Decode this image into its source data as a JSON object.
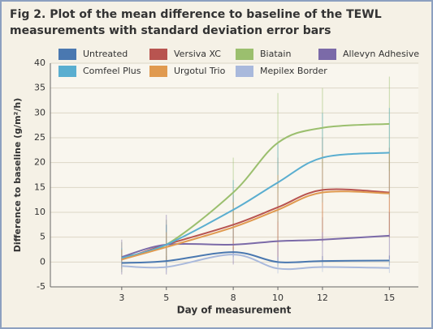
{
  "chart_data": {
    "type": "line",
    "title": "Fig 2. Plot of the mean difference to baseline of the TEWL",
    "subtitle": "measurements with standard deviation error bars",
    "xlabel": "Day of measurement",
    "ylabel": "Difference to baseline (g/m²/h)",
    "x": [
      3,
      5,
      8,
      10,
      12,
      15
    ],
    "series": [
      {
        "name": "Untreated",
        "color": "#4a78b0",
        "values": [
          -0.2,
          0.2,
          2,
          0,
          0.2,
          0.3
        ],
        "errors": [
          1,
          1,
          1,
          1,
          1,
          1
        ]
      },
      {
        "name": "Versiva XC",
        "color": "#b85450",
        "values": [
          0.5,
          3.5,
          7.5,
          11,
          14.5,
          14
        ],
        "errors": [
          2,
          4,
          6,
          10,
          10.5,
          9
        ]
      },
      {
        "name": "Biatain",
        "color": "#9bbf6e",
        "values": [
          1,
          3.5,
          14,
          24,
          27,
          27.8
        ],
        "errors": [
          3,
          5,
          7,
          10,
          8,
          9.5
        ]
      },
      {
        "name": "Allevyn Adhesive",
        "color": "#7b6aa8",
        "values": [
          1,
          3.5,
          3.5,
          4.2,
          4.5,
          5.3
        ],
        "errors": [
          3.5,
          6,
          4,
          4,
          4.5,
          4.7
        ]
      },
      {
        "name": "Comfeel Plus",
        "color": "#5aaed0",
        "values": [
          0.8,
          3.5,
          10.5,
          16,
          21,
          22
        ],
        "errors": [
          2,
          4,
          6,
          8,
          9,
          9
        ]
      },
      {
        "name": "Urgotul Trio",
        "color": "#e09a50",
        "values": [
          0.5,
          3,
          7,
          10.5,
          14,
          13.8
        ],
        "errors": [
          2,
          3,
          5,
          7,
          8,
          8
        ]
      },
      {
        "name": "Mepilex Border",
        "color": "#a9b9dc",
        "values": [
          -0.8,
          -1,
          1.5,
          -1.3,
          -1,
          -1.2
        ],
        "errors": [
          1,
          1,
          1,
          1,
          1,
          1
        ]
      }
    ],
    "xlim": [
      -0.2,
      16.3
    ],
    "xticks": [
      3,
      5,
      8,
      10,
      12,
      15
    ],
    "ylim": [
      -5,
      40
    ],
    "yticks": [
      -5,
      0,
      5,
      10,
      15,
      20,
      25,
      30,
      35,
      40
    ],
    "grid": true,
    "legend": "top"
  }
}
